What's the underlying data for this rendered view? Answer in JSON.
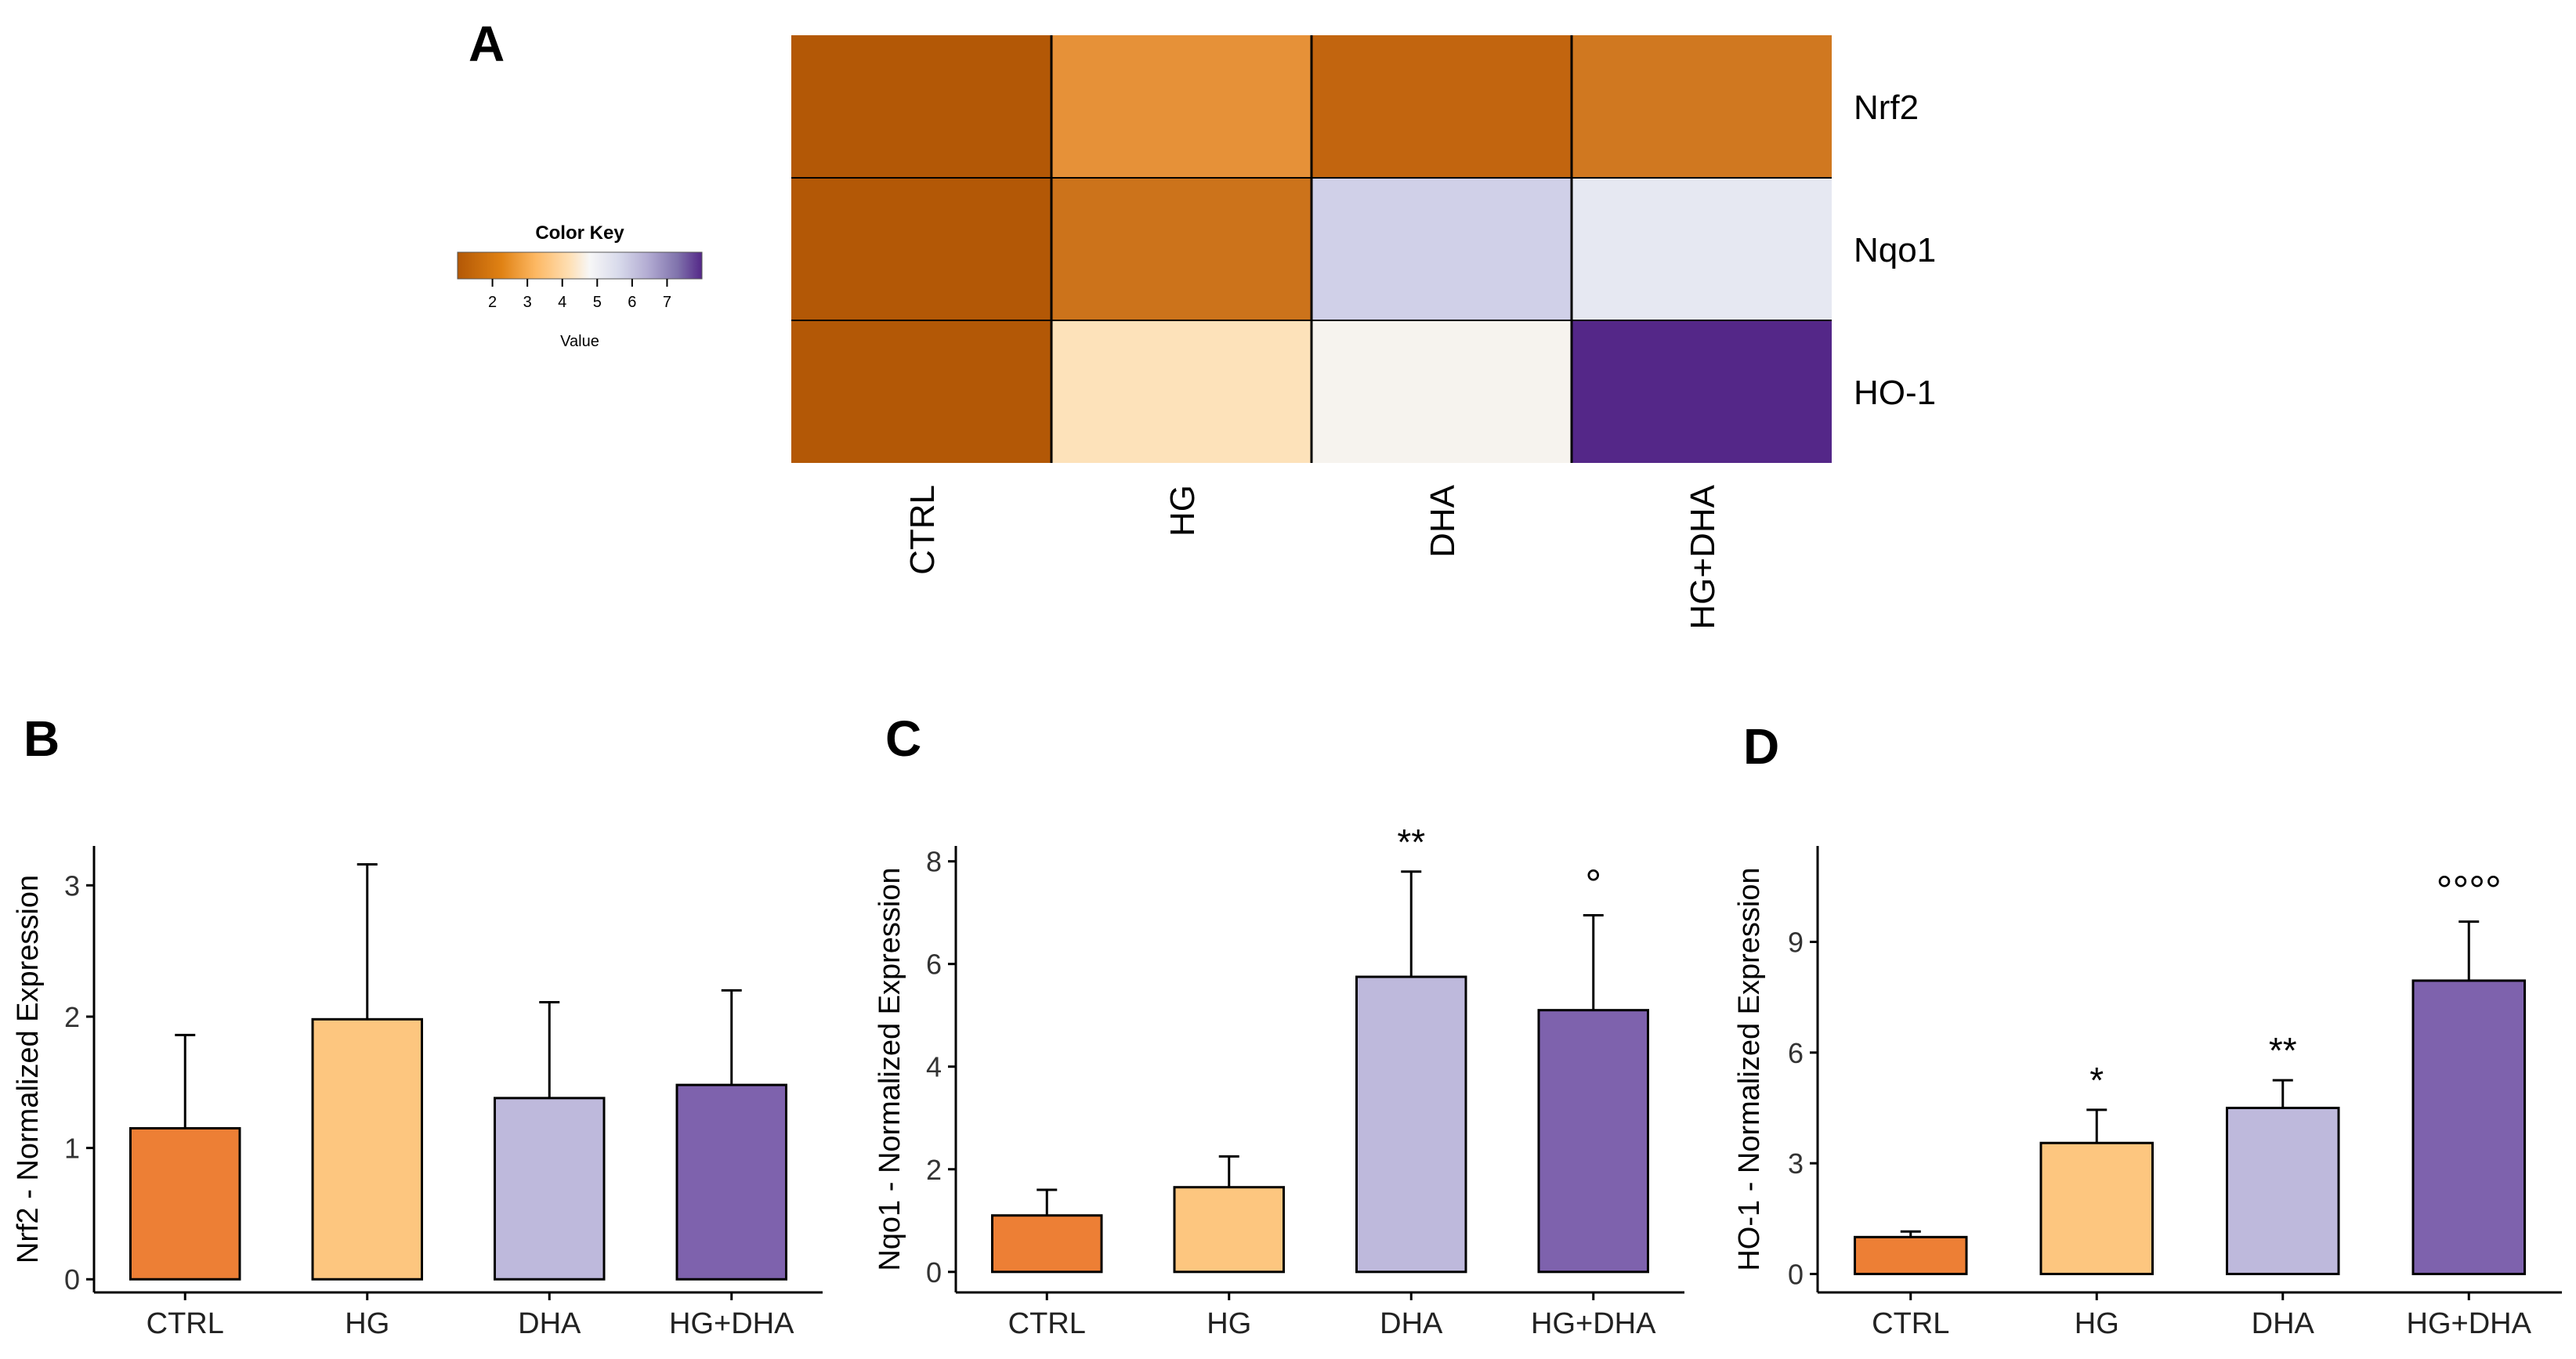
{
  "figure": {
    "colors": {
      "ctrl": "#ED7F35",
      "hg": "#FDC67F",
      "dha": "#BEB9DC",
      "hgdha": "#7E62AD",
      "axis": "#000000"
    }
  },
  "chart_data": [
    {
      "panel": "A",
      "type": "heatmap",
      "columns": [
        "CTRL",
        "HG",
        "DHA",
        "HG+DHA"
      ],
      "rows": [
        "Nrf2",
        "Nqo1",
        "HO-1"
      ],
      "cell_colors": [
        [
          "#B35806",
          "#E69138",
          "#C2650F",
          "#D07820"
        ],
        [
          "#B35806",
          "#CC731B",
          "#D0D0E8",
          "#E6E8F2"
        ],
        [
          "#B35806",
          "#FDE2BA",
          "#F6F3EE",
          "#542788"
        ]
      ],
      "color_key": {
        "title": "Color Key",
        "xlabel": "Value",
        "ticks": [
          "2",
          "3",
          "4",
          "5",
          "6",
          "7"
        ],
        "range": [
          1,
          8
        ]
      }
    },
    {
      "panel": "B",
      "type": "bar",
      "categories": [
        "CTRL",
        "HG",
        "DHA",
        "HG+DHA"
      ],
      "values": [
        1.15,
        1.98,
        1.38,
        1.48
      ],
      "errors": [
        0.71,
        1.18,
        0.73,
        0.72
      ],
      "annotations": [
        "",
        "",
        "",
        ""
      ],
      "ylabel": "Nrf2 - Normalized Expression",
      "yticks": [
        "0",
        "1",
        "2",
        "3"
      ],
      "ylim": [
        -0.1,
        3.3
      ]
    },
    {
      "panel": "C",
      "type": "bar",
      "categories": [
        "CTRL",
        "HG",
        "DHA",
        "HG+DHA"
      ],
      "values": [
        1.1,
        1.65,
        5.75,
        5.1
      ],
      "errors": [
        0.5,
        0.6,
        2.05,
        1.85
      ],
      "annotations": [
        "",
        "",
        "**",
        "°"
      ],
      "ylabel": "Nqo1 - Normalized Expression",
      "yticks": [
        "0",
        "2",
        "4",
        "6",
        "8"
      ],
      "ylim": [
        -0.4,
        8.3
      ]
    },
    {
      "panel": "D",
      "type": "bar",
      "categories": [
        "CTRL",
        "HG",
        "DHA",
        "HG+DHA"
      ],
      "values": [
        1.0,
        3.55,
        4.5,
        7.95
      ],
      "errors": [
        0.15,
        0.9,
        0.75,
        1.6
      ],
      "annotations": [
        "",
        "*",
        "**",
        "°°°°"
      ],
      "ylabel": "HO-1 - Normalized Expression",
      "yticks": [
        "0",
        "3",
        "6",
        "9"
      ],
      "ylim": [
        -0.5,
        11.6
      ]
    }
  ]
}
